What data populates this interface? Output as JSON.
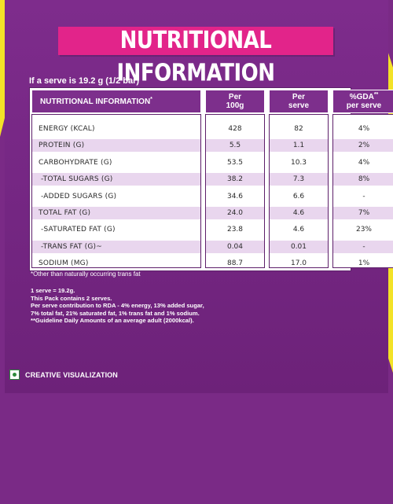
{
  "title": "NUTRITIONAL INFORMATION",
  "serve_info": "If a serve is 19.2 g (1/2 bar)",
  "table": {
    "headers": {
      "name": "NUTRITIONAL INFORMATION",
      "name_mark": "*",
      "per100_line1": "Per",
      "per100_line2": "100g",
      "perserve_line1": "Per",
      "perserve_line2": "serve",
      "gda_line1": "%GDA",
      "gda_mark": "**",
      "gda_line2": "per serve"
    },
    "rows": [
      {
        "name": "ENERGY (KCAL)",
        "per100": "428",
        "serve": "82",
        "gda": "4%"
      },
      {
        "name": "PROTEIN (G)",
        "per100": "5.5",
        "serve": "1.1",
        "gda": "2%"
      },
      {
        "name": "CARBOHYDRATE (G)",
        "per100": "53.5",
        "serve": "10.3",
        "gda": "4%"
      },
      {
        "name": "-TOTAL SUGARS (G)",
        "per100": "38.2",
        "serve": "7.3",
        "gda": "8%"
      },
      {
        "name": "-ADDED SUGARS (G)",
        "per100": "34.6",
        "serve": "6.6",
        "gda": "-"
      },
      {
        "name": "TOTAL FAT (G)",
        "per100": "24.0",
        "serve": "4.6",
        "gda": "7%"
      },
      {
        "name": "-SATURATED FAT (G)",
        "per100": "23.8",
        "serve": "4.6",
        "gda": "23%"
      },
      {
        "name": "-TRANS FAT (G)~",
        "per100": "0.04",
        "serve": "0.01",
        "gda": "-"
      },
      {
        "name": "SODIUM (MG)",
        "per100": "88.7",
        "serve": "17.0",
        "gda": "1%"
      }
    ]
  },
  "footnote": "*Other than naturally occurring trans fat",
  "notes": [
    "1 serve = 19.2g.",
    "This Pack contains 2 serves.",
    "Per serve contribution to RDA - 4% energy, 13% added sugar,",
    "7% total fat, 21% saturated fat, 1% trans fat and 1% sodium.",
    "**Guideline Daily Amounts of an average adult (2000kcal)."
  ],
  "badge": {
    "icon": "veg-mark-icon",
    "label": "CREATIVE VISUALIZATION"
  },
  "colors": {
    "background": "#7a2a86",
    "accent_yellow": "#f3e227",
    "title_pink": "#e2248a",
    "header_purple": "#7d2f8c",
    "row_shade": "#e9d6ee"
  }
}
